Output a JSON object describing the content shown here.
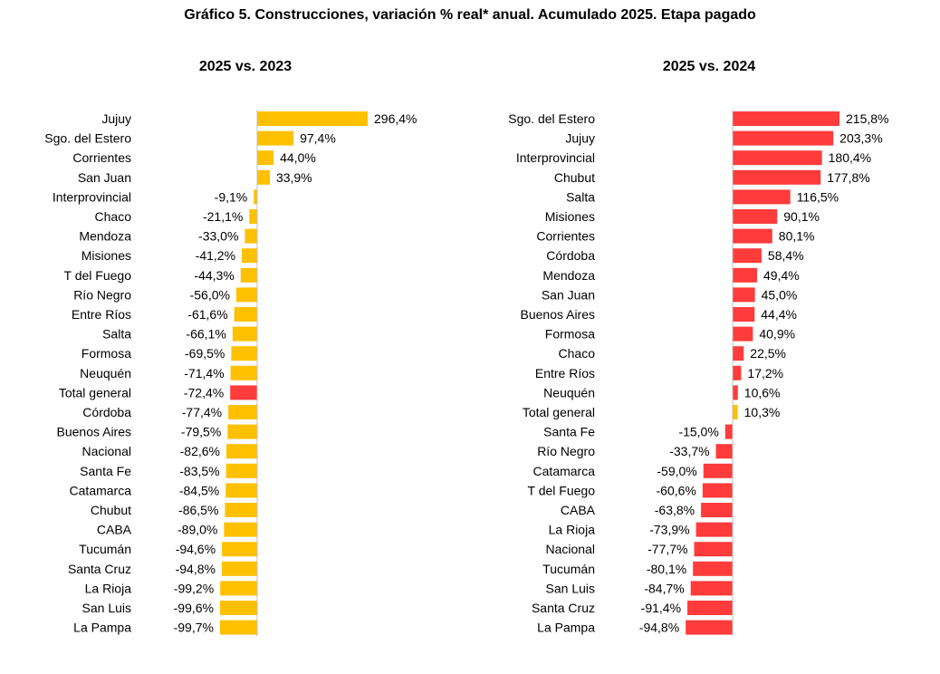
{
  "title": "Gráfico 5. Construcciones, variación % real* anual. Acumulado 2025. Etapa pagado",
  "colors": {
    "yellow": "#FFC000",
    "red": "#FF3B3B",
    "axis": "#BFBFBF"
  },
  "chart_data": [
    {
      "type": "bar",
      "orientation": "horizontal",
      "title": "2025 vs. 2023",
      "categories": [
        "Jujuy",
        "Sgo. del Estero",
        "Corrientes",
        "San Juan",
        "Interprovincial",
        "Chaco",
        "Mendoza",
        "Misiones",
        "T del Fuego",
        "Río Negro",
        "Entre Ríos",
        "Salta",
        "Formosa",
        "Neuquén",
        "Total general",
        "Córdoba",
        "Buenos Aires",
        "Nacional",
        "Santa Fe",
        "Catamarca",
        "Chubut",
        "CABA",
        "Tucumán",
        "Santa Cruz",
        "La Rioja",
        "San Luis",
        "La Pampa"
      ],
      "values": [
        296.4,
        97.4,
        44.0,
        33.9,
        -9.1,
        -21.1,
        -33.0,
        -41.2,
        -44.3,
        -56.0,
        -61.6,
        -66.1,
        -69.5,
        -71.4,
        -72.4,
        -77.4,
        -79.5,
        -82.6,
        -83.5,
        -84.5,
        -86.5,
        -89.0,
        -94.6,
        -94.8,
        -99.2,
        -99.6,
        -99.7
      ],
      "labels": [
        "296,4%",
        "97,4%",
        "44,0%",
        "33,9%",
        "-9,1%",
        "-21,1%",
        "-33,0%",
        "-41,2%",
        "-44,3%",
        "-56,0%",
        "-61,6%",
        "-66,1%",
        "-69,5%",
        "-71,4%",
        "-72,4%",
        "-77,4%",
        "-79,5%",
        "-82,6%",
        "-83,5%",
        "-84,5%",
        "-86,5%",
        "-89,0%",
        "-94,6%",
        "-94,8%",
        "-99,2%",
        "-99,6%",
        "-99,7%"
      ],
      "highlight": "Total general",
      "bar_color": "#FFC000",
      "highlight_color": "#FF3B3B"
    },
    {
      "type": "bar",
      "orientation": "horizontal",
      "title": "2025 vs. 2024",
      "categories": [
        "Sgo. del Estero",
        "Jujuy",
        "Interprovincial",
        "Chubut",
        "Salta",
        "Misiones",
        "Corrientes",
        "Córdoba",
        "Mendoza",
        "San Juan",
        "Buenos Aires",
        "Formosa",
        "Chaco",
        "Entre Ríos",
        "Neuquén",
        "Total general",
        "Santa Fe",
        "Río Negro",
        "Catamarca",
        "T del Fuego",
        "CABA",
        "La Rioja",
        "Nacional",
        "Tucumán",
        "San Luis",
        "Santa Cruz",
        "La Pampa"
      ],
      "values": [
        215.8,
        203.3,
        180.4,
        177.8,
        116.5,
        90.1,
        80.1,
        58.4,
        49.4,
        45.0,
        44.4,
        40.9,
        22.5,
        17.2,
        10.6,
        10.3,
        -15.0,
        -33.7,
        -59.0,
        -60.6,
        -63.8,
        -73.9,
        -77.7,
        -80.1,
        -84.7,
        -91.4,
        -94.8
      ],
      "labels": [
        "215,8%",
        "203,3%",
        "180,4%",
        "177,8%",
        "116,5%",
        "90,1%",
        "80,1%",
        "58,4%",
        "49,4%",
        "45,0%",
        "44,4%",
        "40,9%",
        "22,5%",
        "17,2%",
        "10,6%",
        "10,3%",
        "-15,0%",
        "-33,7%",
        "-59,0%",
        "-60,6%",
        "-63,8%",
        "-73,9%",
        "-77,7%",
        "-80,1%",
        "-84,7%",
        "-91,4%",
        "-94,8%"
      ],
      "highlight": "Total general",
      "bar_color": "#FF3B3B",
      "highlight_color": "#FFC000"
    }
  ]
}
